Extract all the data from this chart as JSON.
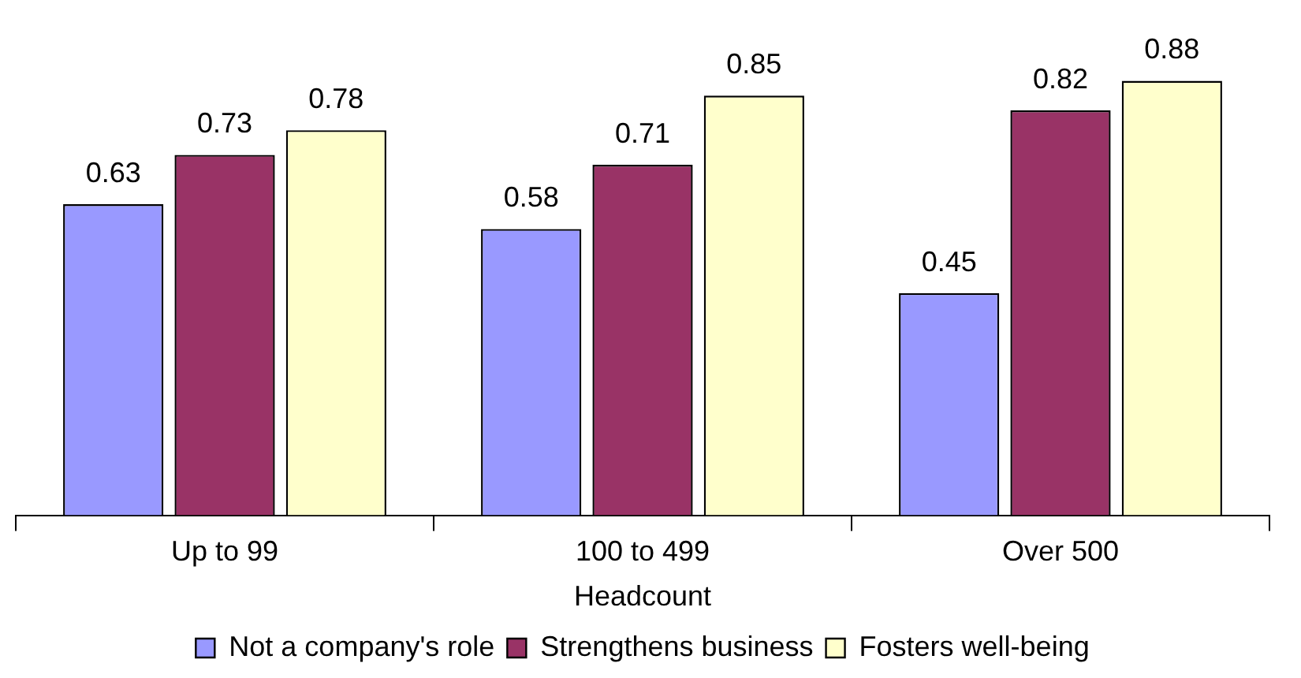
{
  "chart_data": {
    "type": "bar",
    "xlabel": "Headcount",
    "categories": [
      "Up to 99",
      "100 to 499",
      "Over 500"
    ],
    "series": [
      {
        "name": "Not a company's role",
        "color": "#9999ff",
        "values": [
          0.63,
          0.58,
          0.45
        ]
      },
      {
        "name": "Strengthens business",
        "color": "#993366",
        "values": [
          0.73,
          0.71,
          0.82
        ]
      },
      {
        "name": "Fosters well-being",
        "color": "#ffffcc",
        "values": [
          0.78,
          0.85,
          0.88
        ]
      }
    ],
    "data_labels": true,
    "legend": "bottom",
    "grid": false
  }
}
